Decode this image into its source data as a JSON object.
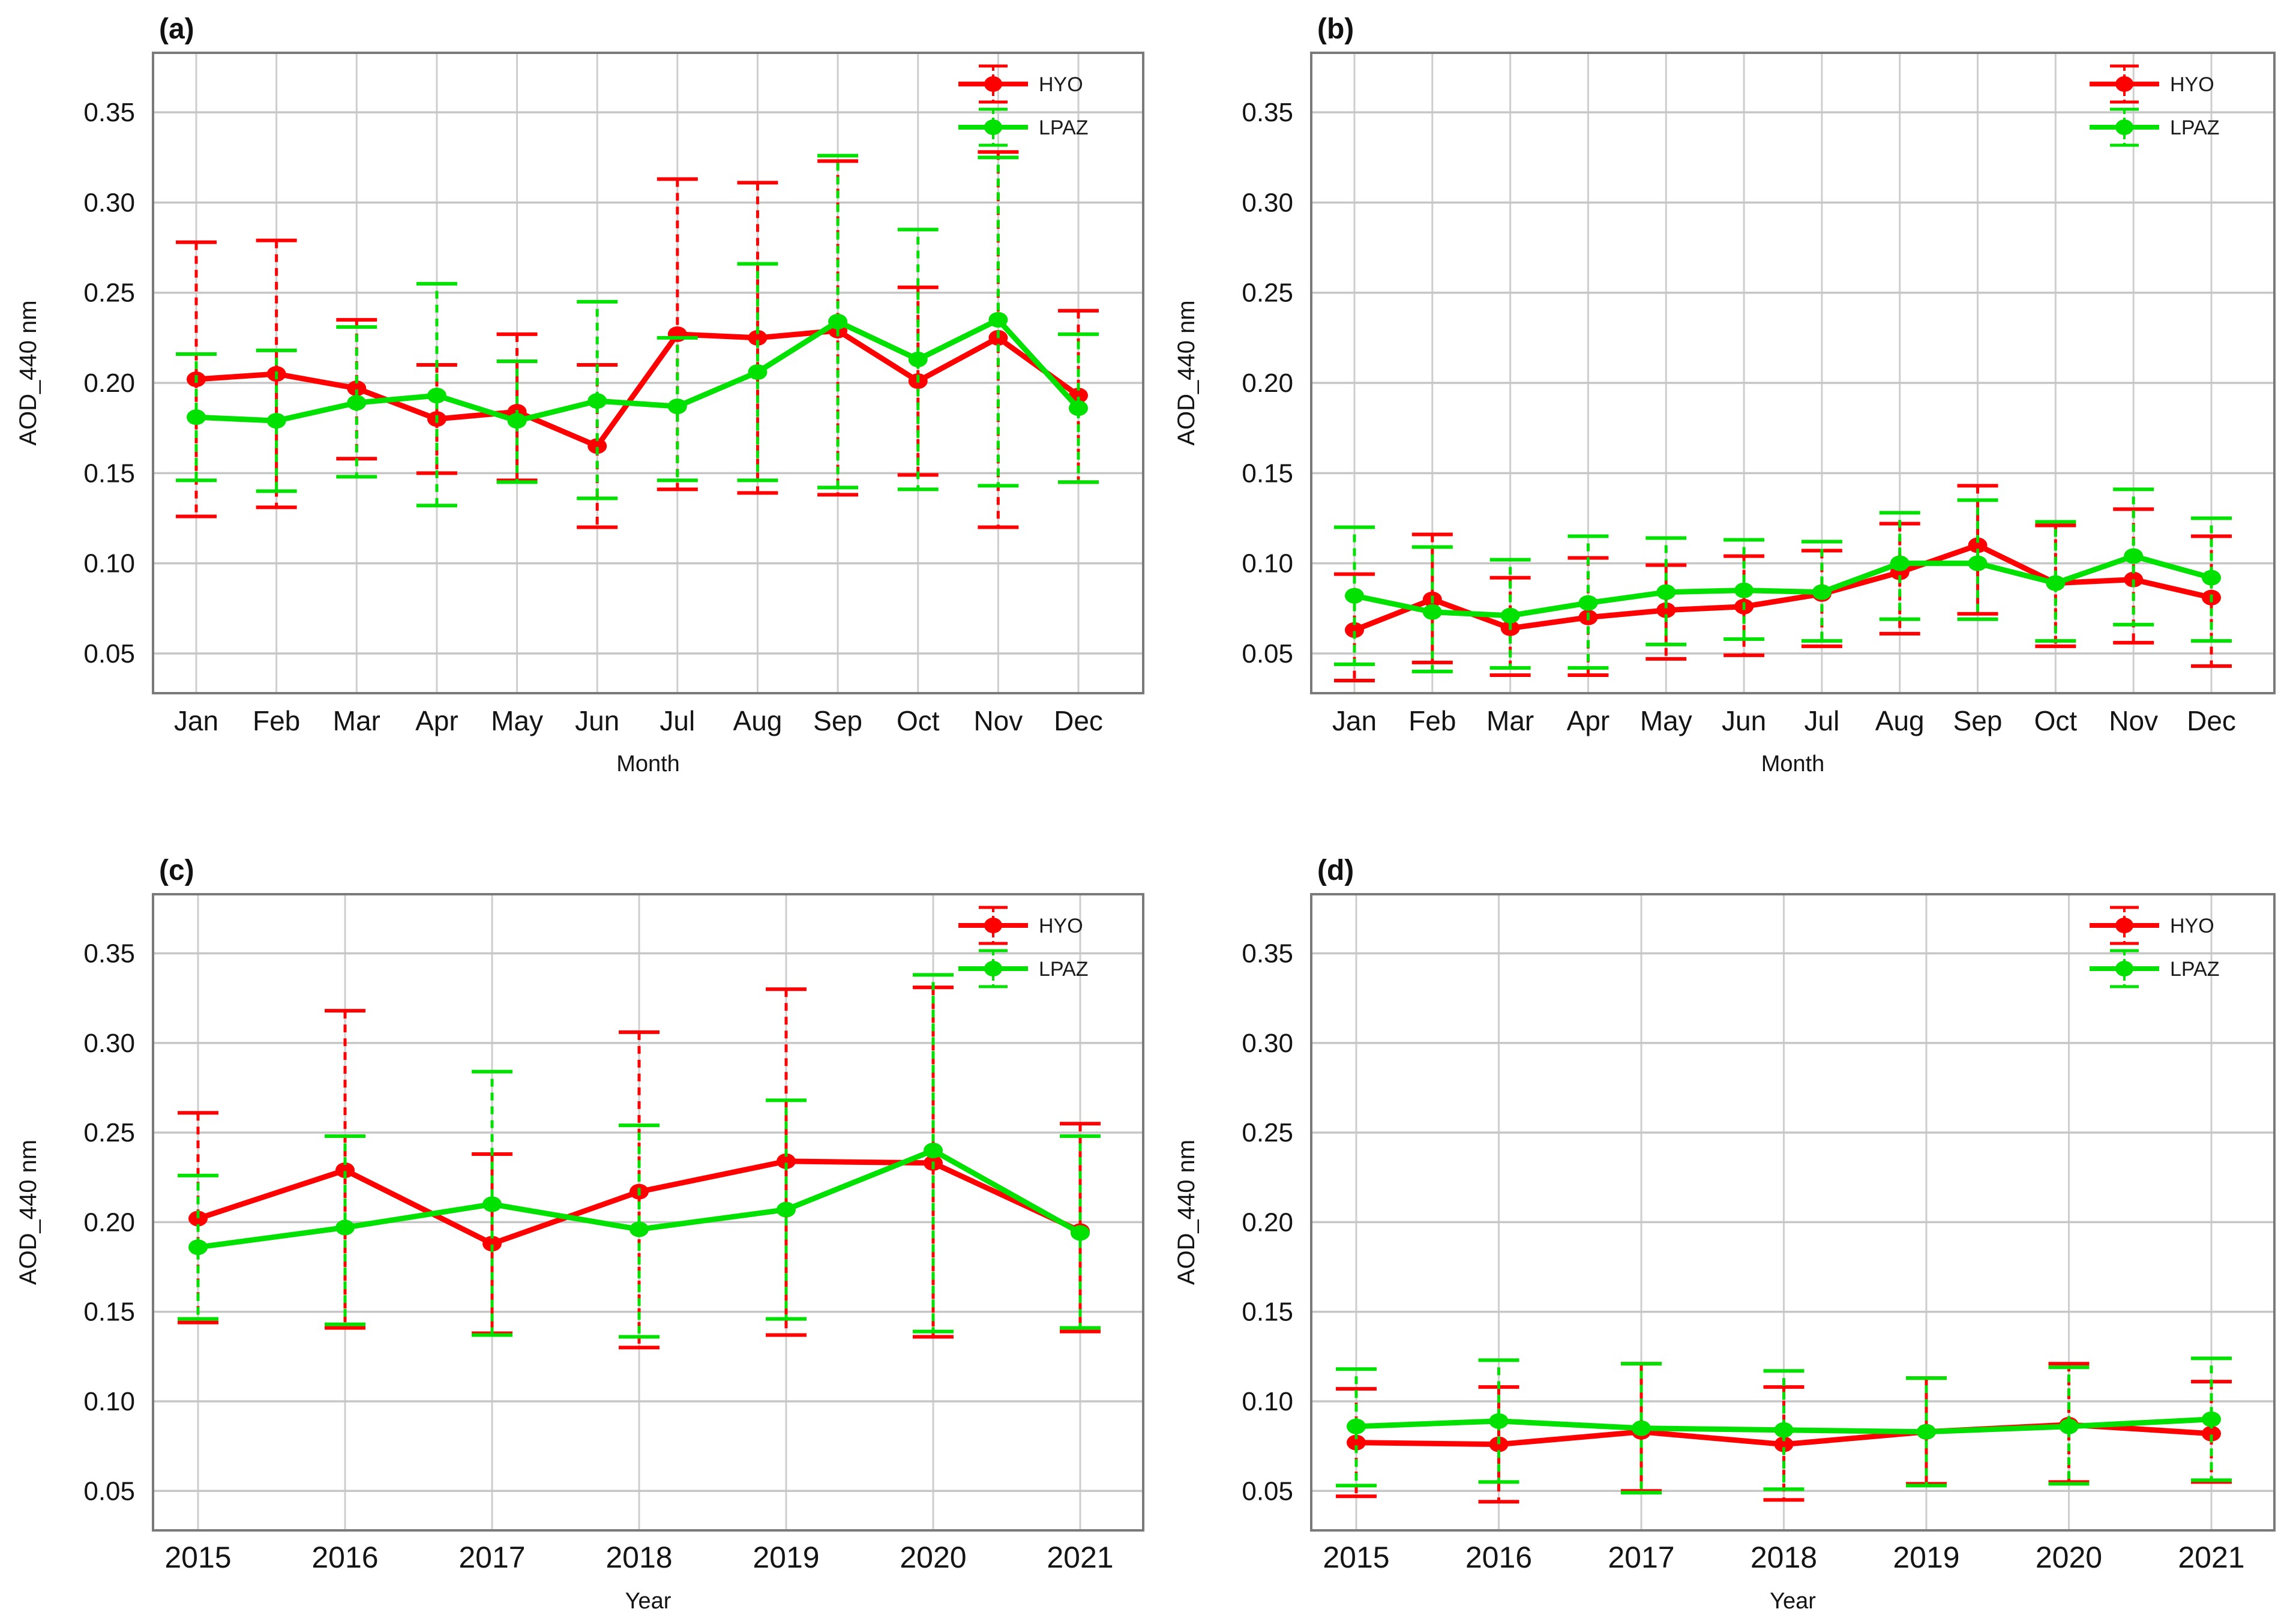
{
  "figure": {
    "background": "#ffffff",
    "y_axis_label": "AOD_440 nm",
    "text_color": "#141414",
    "grid_color": "#c6c6c6",
    "border_color": "#7a7a7a"
  },
  "legend": {
    "entries": [
      {
        "label": "HYO",
        "color": "#ff0000"
      },
      {
        "label": "LPAZ",
        "color": "#00e100"
      }
    ]
  },
  "chart_data": [
    {
      "id": "a",
      "title": "(a)",
      "type": "line",
      "xlabel": "Month",
      "ylabel": "AOD_440 nm",
      "legend_position": "top-right",
      "grid": true,
      "ylim": [
        0.028,
        0.383
      ],
      "yticks": [
        "0.35",
        "0.30",
        "0.25",
        "0.20",
        "0.15",
        "0.10",
        "0.05"
      ],
      "categories": [
        "Jan",
        "Feb",
        "Mar",
        "Apr",
        "May",
        "Jun",
        "Jul",
        "Aug",
        "Sep",
        "Oct",
        "Nov",
        "Dec"
      ],
      "series": [
        {
          "name": "HYO",
          "color": "#ff0000",
          "values": [
            0.202,
            0.205,
            0.197,
            0.18,
            0.184,
            0.165,
            0.227,
            0.225,
            0.229,
            0.201,
            0.225,
            0.193
          ],
          "err_lo": [
            0.126,
            0.131,
            0.158,
            0.15,
            0.146,
            0.12,
            0.141,
            0.139,
            0.138,
            0.149,
            0.12,
            0.145
          ],
          "err_hi": [
            0.278,
            0.279,
            0.235,
            0.21,
            0.227,
            0.21,
            0.313,
            0.311,
            0.323,
            0.253,
            0.328,
            0.24
          ]
        },
        {
          "name": "LPAZ",
          "color": "#00e100",
          "values": [
            0.181,
            0.179,
            0.189,
            0.193,
            0.179,
            0.19,
            0.187,
            0.206,
            0.234,
            0.213,
            0.235,
            0.186
          ],
          "err_lo": [
            0.146,
            0.14,
            0.148,
            0.132,
            0.145,
            0.136,
            0.146,
            0.146,
            0.142,
            0.141,
            0.143,
            0.145
          ],
          "err_hi": [
            0.216,
            0.218,
            0.231,
            0.255,
            0.212,
            0.245,
            0.225,
            0.266,
            0.326,
            0.285,
            0.325,
            0.227
          ]
        }
      ]
    },
    {
      "id": "b",
      "title": "(b)",
      "type": "line",
      "xlabel": "Month",
      "ylabel": "AOD_440 nm",
      "legend_position": "top-right",
      "grid": true,
      "ylim": [
        0.028,
        0.383
      ],
      "yticks": [
        "0.35",
        "0.30",
        "0.25",
        "0.20",
        "0.15",
        "0.10",
        "0.05"
      ],
      "categories": [
        "Jan",
        "Feb",
        "Mar",
        "Apr",
        "May",
        "Jun",
        "Jul",
        "Aug",
        "Sep",
        "Oct",
        "Nov",
        "Dec"
      ],
      "series": [
        {
          "name": "HYO",
          "color": "#ff0000",
          "values": [
            0.063,
            0.08,
            0.064,
            0.07,
            0.074,
            0.076,
            0.083,
            0.095,
            0.11,
            0.089,
            0.091,
            0.081
          ],
          "err_lo": [
            0.035,
            0.045,
            0.038,
            0.038,
            0.047,
            0.049,
            0.054,
            0.061,
            0.072,
            0.054,
            0.056,
            0.043
          ],
          "err_hi": [
            0.094,
            0.116,
            0.092,
            0.103,
            0.099,
            0.104,
            0.107,
            0.122,
            0.143,
            0.121,
            0.13,
            0.115
          ]
        },
        {
          "name": "LPAZ",
          "color": "#00e100",
          "values": [
            0.082,
            0.073,
            0.071,
            0.078,
            0.084,
            0.085,
            0.084,
            0.1,
            0.1,
            0.089,
            0.104,
            0.092
          ],
          "err_lo": [
            0.044,
            0.04,
            0.042,
            0.042,
            0.055,
            0.058,
            0.057,
            0.069,
            0.069,
            0.057,
            0.066,
            0.057
          ],
          "err_hi": [
            0.12,
            0.109,
            0.102,
            0.115,
            0.114,
            0.113,
            0.112,
            0.128,
            0.135,
            0.123,
            0.141,
            0.125
          ]
        }
      ]
    },
    {
      "id": "c",
      "title": "(c)",
      "type": "line",
      "xlabel": "Year",
      "ylabel": "AOD_440 nm",
      "legend_position": "top-right",
      "grid": true,
      "ylim": [
        0.028,
        0.383
      ],
      "yticks": [
        "0.35",
        "0.30",
        "0.25",
        "0.20",
        "0.15",
        "0.10",
        "0.05"
      ],
      "categories": [
        "2015",
        "2016",
        "2017",
        "2018",
        "2019",
        "2020",
        "2021"
      ],
      "series": [
        {
          "name": "HYO",
          "color": "#ff0000",
          "values": [
            0.202,
            0.229,
            0.188,
            0.217,
            0.234,
            0.233,
            0.195
          ],
          "err_lo": [
            0.144,
            0.141,
            0.138,
            0.13,
            0.137,
            0.136,
            0.139
          ],
          "err_hi": [
            0.261,
            0.318,
            0.238,
            0.306,
            0.33,
            0.331,
            0.255
          ]
        },
        {
          "name": "LPAZ",
          "color": "#00e100",
          "values": [
            0.186,
            0.197,
            0.21,
            0.196,
            0.207,
            0.24,
            0.194
          ],
          "err_lo": [
            0.146,
            0.143,
            0.137,
            0.136,
            0.146,
            0.139,
            0.141
          ],
          "err_hi": [
            0.226,
            0.248,
            0.284,
            0.254,
            0.268,
            0.338,
            0.248
          ]
        }
      ]
    },
    {
      "id": "d",
      "title": "(d)",
      "type": "line",
      "xlabel": "Year",
      "ylabel": "AOD_440 nm",
      "legend_position": "top-right",
      "grid": true,
      "ylim": [
        0.028,
        0.383
      ],
      "yticks": [
        "0.35",
        "0.30",
        "0.25",
        "0.20",
        "0.15",
        "0.10",
        "0.05"
      ],
      "categories": [
        "2015",
        "2016",
        "2017",
        "2018",
        "2019",
        "2020",
        "2021"
      ],
      "series": [
        {
          "name": "HYO",
          "color": "#ff0000",
          "values": [
            0.077,
            0.076,
            0.083,
            0.076,
            0.083,
            0.087,
            0.082
          ],
          "err_lo": [
            0.047,
            0.044,
            0.05,
            0.045,
            0.054,
            0.055,
            0.055
          ],
          "err_hi": [
            0.107,
            0.108,
            0.121,
            0.108,
            0.113,
            0.121,
            0.111
          ]
        },
        {
          "name": "LPAZ",
          "color": "#00e100",
          "values": [
            0.086,
            0.089,
            0.085,
            0.084,
            0.083,
            0.086,
            0.09
          ],
          "err_lo": [
            0.053,
            0.055,
            0.049,
            0.051,
            0.053,
            0.054,
            0.056
          ],
          "err_hi": [
            0.118,
            0.123,
            0.121,
            0.117,
            0.113,
            0.119,
            0.124
          ]
        }
      ]
    }
  ]
}
